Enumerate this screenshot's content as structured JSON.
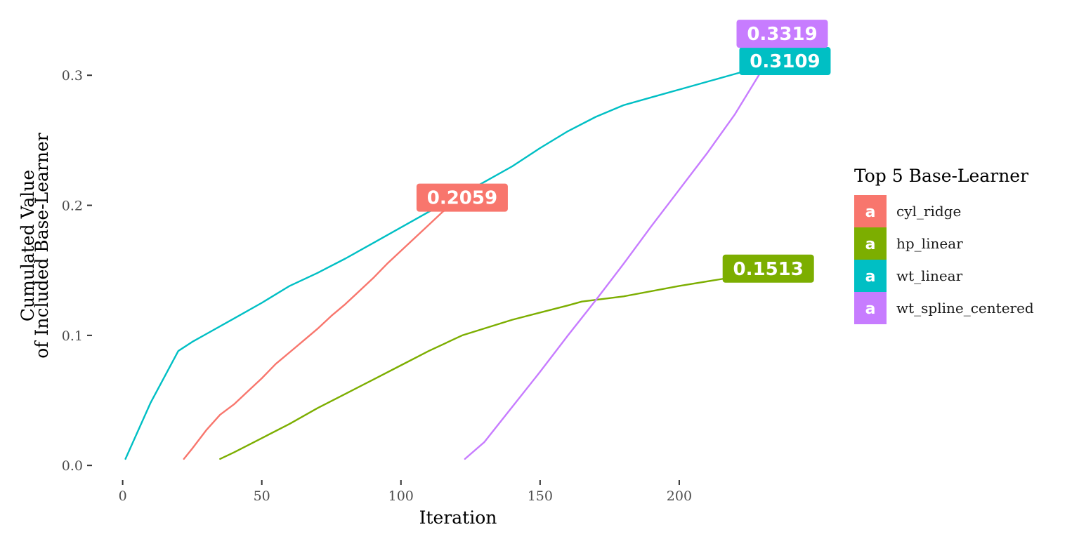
{
  "chart_data": {
    "type": "line",
    "xlabel": "Iteration",
    "ylabel_lines": [
      "Cumulated Value",
      "of Included Base-Learner"
    ],
    "xlim": [
      -10,
      250
    ],
    "ylim": [
      -0.008,
      0.346
    ],
    "x_ticks": [
      0,
      50,
      100,
      150,
      200
    ],
    "y_ticks": [
      0.0,
      0.1,
      0.2,
      0.3
    ],
    "y_tick_labels": [
      "0.0",
      "0.1",
      "0.2",
      "0.3"
    ],
    "grid": false,
    "legend": {
      "title": "Top 5 Base-Learner",
      "position": "right",
      "key_glyph": "a"
    },
    "series": [
      {
        "name": "cyl_ridge",
        "color": "#F8766D",
        "end_label": "0.2059",
        "x": [
          22,
          25,
          30,
          35,
          40,
          45,
          50,
          55,
          60,
          65,
          70,
          75,
          80,
          85,
          90,
          95,
          100,
          105,
          110,
          115,
          120,
          122
        ],
        "y": [
          0.005,
          0.013,
          0.027,
          0.039,
          0.047,
          0.057,
          0.067,
          0.078,
          0.087,
          0.096,
          0.105,
          0.115,
          0.124,
          0.134,
          0.144,
          0.155,
          0.165,
          0.175,
          0.185,
          0.195,
          0.202,
          0.2059
        ]
      },
      {
        "name": "hp_linear",
        "color": "#7CAE00",
        "end_label": "0.1513",
        "x": [
          35,
          40,
          50,
          60,
          70,
          80,
          90,
          100,
          110,
          120,
          122,
          140,
          160,
          165,
          180,
          200,
          220,
          232
        ],
        "y": [
          0.005,
          0.01,
          0.021,
          0.032,
          0.044,
          0.055,
          0.066,
          0.077,
          0.088,
          0.098,
          0.1,
          0.112,
          0.123,
          0.126,
          0.13,
          0.138,
          0.145,
          0.1513
        ]
      },
      {
        "name": "wt_linear",
        "color": "#00BFC4",
        "end_label": "0.3109",
        "x": [
          1,
          10,
          20,
          25,
          30,
          40,
          50,
          60,
          70,
          80,
          90,
          100,
          110,
          120,
          130,
          140,
          150,
          160,
          170,
          180,
          190,
          200,
          210,
          220,
          230,
          238
        ],
        "y": [
          0.005,
          0.048,
          0.088,
          0.095,
          0.101,
          0.113,
          0.125,
          0.138,
          0.148,
          0.159,
          0.171,
          0.183,
          0.195,
          0.206,
          0.218,
          0.23,
          0.244,
          0.257,
          0.268,
          0.277,
          0.283,
          0.289,
          0.295,
          0.301,
          0.307,
          0.3109
        ]
      },
      {
        "name": "wt_spline_centered",
        "color": "#C77CFF",
        "end_label": "0.3319",
        "x": [
          123,
          130,
          140,
          150,
          160,
          170,
          180,
          190,
          200,
          210,
          220,
          230,
          237
        ],
        "y": [
          0.005,
          0.018,
          0.045,
          0.072,
          0.1,
          0.127,
          0.155,
          0.184,
          0.212,
          0.24,
          0.27,
          0.305,
          0.3319
        ]
      }
    ]
  }
}
